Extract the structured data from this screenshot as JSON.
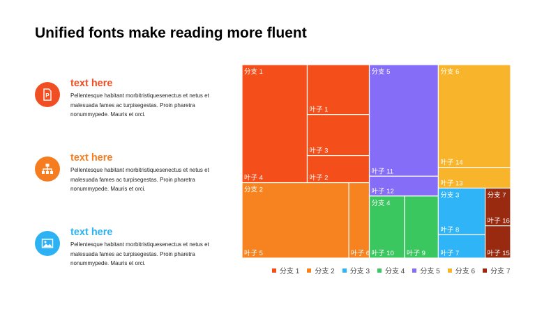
{
  "page": {
    "title": "Unified fonts make reading more fluent"
  },
  "items": [
    {
      "icon": "document-p-icon",
      "color": "#f04e23",
      "heading": "text here",
      "body": "Pellentesque habitant morbitristiquesenectus  et netus et malesuada  fames ac turpisegestas. Proin pharetra nonummypede.  Mauris et orci."
    },
    {
      "icon": "org-chart-icon",
      "color": "#f57d20",
      "heading": "text here",
      "body": "Pellentesque habitant morbitristiquesenectus  et netus et malesuada  fames ac turpisegestas. Proin pharetra nonummypede.  Mauris et orci."
    },
    {
      "icon": "image-icon",
      "color": "#2cb2f4",
      "heading": "text here",
      "body": "Pellentesque habitant morbitristiquesenectus  et netus et malesuada  fames ac turpisegestas. Proin pharetra nonummypede.  Mauris et orci."
    }
  ],
  "chart_data": {
    "type": "treemap",
    "branches": [
      {
        "name": "分支 1",
        "color": "#f44f1a",
        "leaves": [
          {
            "name": "叶子 4",
            "value": 16.9
          },
          {
            "name": "叶子 1",
            "value": 6.8
          },
          {
            "name": "叶子 3",
            "value": 5.6
          },
          {
            "name": "叶子 2",
            "value": 3.7
          }
        ]
      },
      {
        "name": "分支 2",
        "color": "#f78320",
        "leaves": [
          {
            "name": "叶子 5",
            "value": 17.7
          },
          {
            "name": "叶子 6",
            "value": 3.4
          }
        ]
      },
      {
        "name": "分支 3",
        "color": "#2fb4f7",
        "leaves": [
          {
            "name": "叶子 8",
            "value": 4.8
          },
          {
            "name": "叶子 7",
            "value": 2.4
          }
        ]
      },
      {
        "name": "分支 4",
        "color": "#3bc760",
        "leaves": [
          {
            "name": "叶子 10",
            "value": 4.8
          },
          {
            "name": "叶子 9",
            "value": 4.6
          }
        ]
      },
      {
        "name": "分支 5",
        "color": "#866df7",
        "leaves": [
          {
            "name": "叶子 11",
            "value": 16.9
          },
          {
            "name": "叶子 12",
            "value": 3.0
          }
        ]
      },
      {
        "name": "分支 6",
        "color": "#f8b52c",
        "leaves": [
          {
            "name": "叶子 14",
            "value": 16.3
          },
          {
            "name": "叶子 13",
            "value": 3.3
          }
        ]
      },
      {
        "name": "分支 7",
        "color": "#9a2a0f",
        "leaves": [
          {
            "name": "叶子 16",
            "value": 2.1
          },
          {
            "name": "叶子 15",
            "value": 1.8
          }
        ]
      }
    ],
    "legend": [
      "分支 1",
      "分支 2",
      "分支 3",
      "分支 4",
      "分支 5",
      "分支 6",
      "分支 7"
    ],
    "legend_position": "bottom"
  }
}
